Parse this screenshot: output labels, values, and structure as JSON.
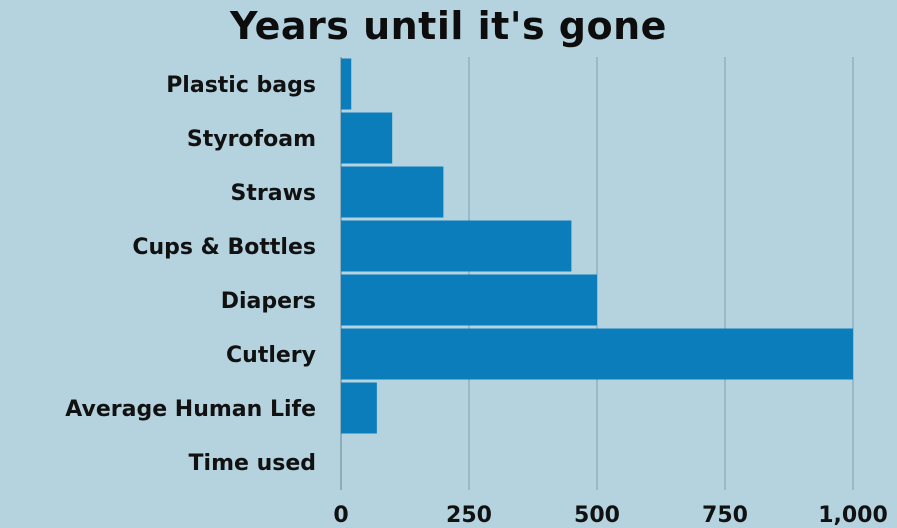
{
  "chart_data": {
    "type": "bar",
    "orientation": "horizontal",
    "title": "Years until it's gone",
    "xlabel": "",
    "ylabel": "",
    "categories": [
      "Plastic bags",
      "Styrofoam",
      "Straws",
      "Cups & Bottles",
      "Diapers",
      "Cutlery",
      "Average Human Life",
      "Time used"
    ],
    "values": [
      20,
      100,
      200,
      450,
      500,
      1000,
      70,
      0
    ],
    "xlim": [
      0,
      1000
    ],
    "xticks": [
      0,
      250,
      500,
      750,
      1000
    ],
    "xtick_labels": [
      "0",
      "250",
      "500",
      "750",
      "1,000"
    ],
    "grid": true,
    "legend": "none",
    "colors": {
      "background": "#b5d3df",
      "bar": "#0b7dbb",
      "grid": "#7f9fae",
      "text": "#111111"
    }
  }
}
